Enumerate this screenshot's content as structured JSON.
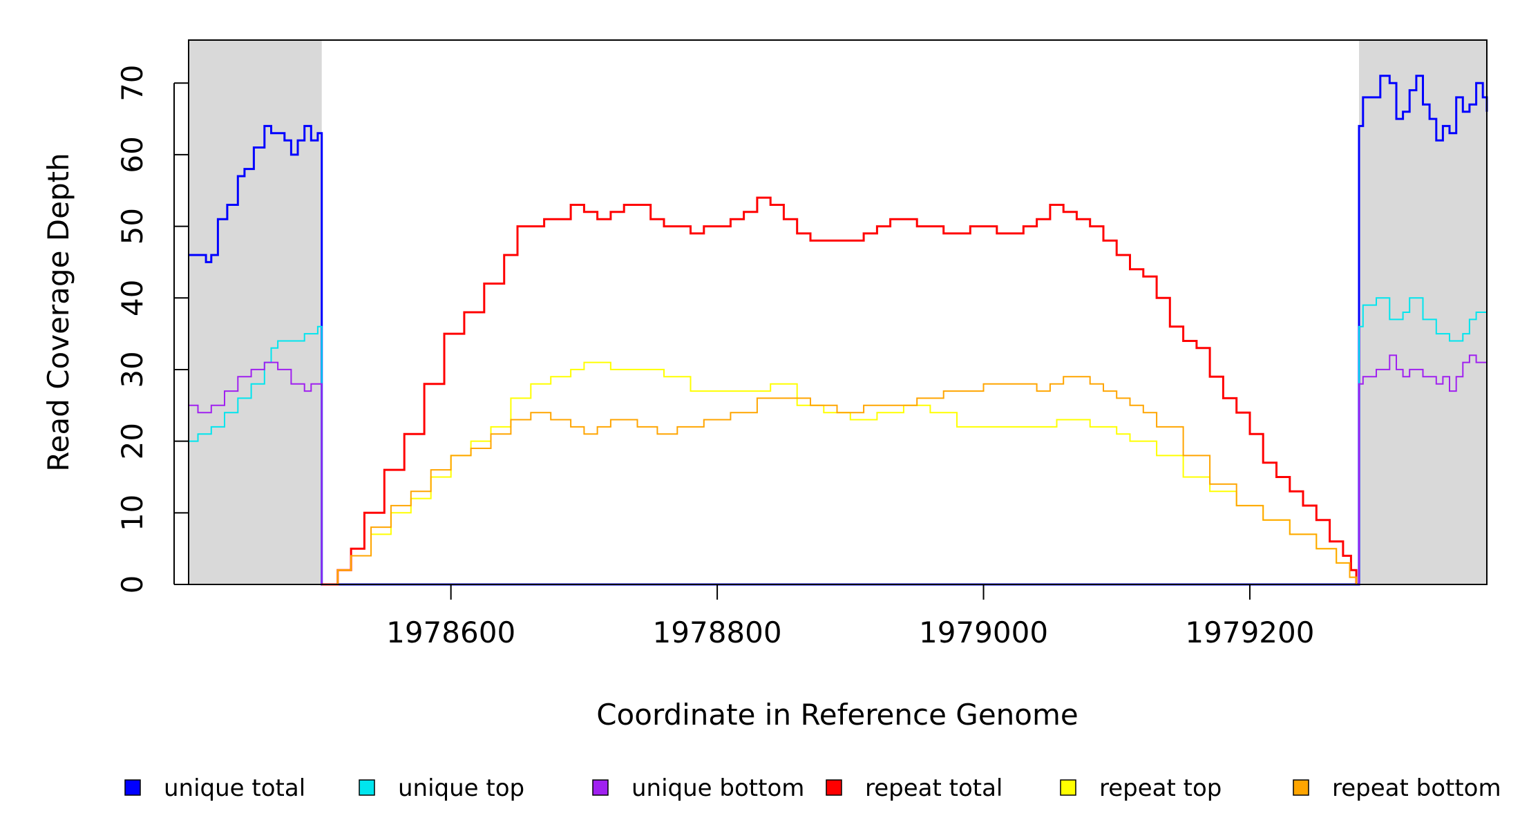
{
  "chart_data": {
    "type": "line",
    "title": "",
    "xlabel": "Coordinate in Reference Genome",
    "ylabel": "Read Coverage Depth",
    "xlim": [
      1978403,
      1979378
    ],
    "ylim": [
      0,
      76
    ],
    "x_ticks": [
      1978600,
      1978800,
      1979000,
      1979200
    ],
    "x_tick_labels": [
      "1978600",
      "1978800",
      "1979000",
      "1979200"
    ],
    "y_ticks": [
      0,
      10,
      20,
      30,
      40,
      50,
      60,
      70
    ],
    "y_tick_labels": [
      "0",
      "10",
      "20",
      "30",
      "40",
      "50",
      "60",
      "70"
    ],
    "grid": false,
    "legend_position": "bottom",
    "shaded_regions": [
      {
        "x0": 1978403,
        "x1": 1978503,
        "color": "#d9d9d9"
      },
      {
        "x0": 1979282,
        "x1": 1979378,
        "color": "#d9d9d9"
      }
    ],
    "series": [
      {
        "name": "unique total",
        "color": "#0000ff",
        "width": 3,
        "x": [
          1978403,
          1978410,
          1978416,
          1978420,
          1978425,
          1978432,
          1978440,
          1978445,
          1978452,
          1978460,
          1978465,
          1978470,
          1978475,
          1978480,
          1978485,
          1978490,
          1978495,
          1978500,
          1978503,
          1978503,
          1979280,
          1979282,
          1979282,
          1979285,
          1979292,
          1979298,
          1979305,
          1979310,
          1979315,
          1979320,
          1979325,
          1979330,
          1979335,
          1979340,
          1979345,
          1979350,
          1979355,
          1979360,
          1979365,
          1979370,
          1979375,
          1979378
        ],
        "y": [
          46,
          46,
          45,
          46,
          51,
          53,
          57,
          58,
          61,
          64,
          63,
          63,
          62,
          60,
          62,
          64,
          62,
          63,
          62,
          0,
          0,
          1,
          64,
          68,
          68,
          71,
          70,
          65,
          66,
          69,
          71,
          67,
          65,
          62,
          64,
          63,
          68,
          66,
          67,
          70,
          68,
          66
        ]
      },
      {
        "name": "unique top",
        "color": "#00e5ee",
        "width": 2,
        "x": [
          1978403,
          1978410,
          1978420,
          1978430,
          1978440,
          1978450,
          1978460,
          1978465,
          1978470,
          1978480,
          1978490,
          1978495,
          1978500,
          1978503,
          1978503,
          1979280,
          1979282,
          1979282,
          1979285,
          1979295,
          1979305,
          1979315,
          1979320,
          1979330,
          1979340,
          1979350,
          1979360,
          1979365,
          1979370,
          1979378
        ],
        "y": [
          20,
          21,
          22,
          24,
          26,
          28,
          31,
          33,
          34,
          34,
          35,
          35,
          36,
          35,
          0,
          0,
          1,
          36,
          39,
          40,
          37,
          38,
          40,
          37,
          35,
          34,
          35,
          37,
          38,
          37
        ]
      },
      {
        "name": "unique bottom",
        "color": "#a020f0",
        "width": 2,
        "x": [
          1978403,
          1978410,
          1978420,
          1978430,
          1978440,
          1978450,
          1978460,
          1978465,
          1978470,
          1978480,
          1978490,
          1978495,
          1978500,
          1978503,
          1978503,
          1979280,
          1979282,
          1979282,
          1979285,
          1979295,
          1979305,
          1979310,
          1979315,
          1979320,
          1979330,
          1979340,
          1979345,
          1979350,
          1979355,
          1979360,
          1979365,
          1979370,
          1979378
        ],
        "y": [
          25,
          24,
          25,
          27,
          29,
          30,
          31,
          31,
          30,
          28,
          27,
          28,
          28,
          27,
          0,
          0,
          1,
          28,
          29,
          30,
          32,
          30,
          29,
          30,
          29,
          28,
          29,
          27,
          29,
          31,
          32,
          31,
          30
        ]
      },
      {
        "name": "repeat total",
        "color": "#ff0000",
        "width": 3,
        "x": [
          1978503,
          1978515,
          1978525,
          1978535,
          1978550,
          1978565,
          1978580,
          1978595,
          1978610,
          1978625,
          1978640,
          1978650,
          1978660,
          1978670,
          1978680,
          1978690,
          1978700,
          1978710,
          1978720,
          1978730,
          1978740,
          1978750,
          1978760,
          1978770,
          1978780,
          1978790,
          1978800,
          1978810,
          1978820,
          1978830,
          1978840,
          1978850,
          1978860,
          1978870,
          1978880,
          1978890,
          1978900,
          1978910,
          1978920,
          1978930,
          1978940,
          1978950,
          1978960,
          1978970,
          1978980,
          1978990,
          1979000,
          1979010,
          1979020,
          1979030,
          1979040,
          1979050,
          1979060,
          1979070,
          1979080,
          1979090,
          1979100,
          1979110,
          1979120,
          1979130,
          1979140,
          1979150,
          1979160,
          1979170,
          1979180,
          1979190,
          1979200,
          1979210,
          1979220,
          1979230,
          1979240,
          1979250,
          1979260,
          1979270,
          1979276,
          1979280
        ],
        "y": [
          0,
          2,
          5,
          10,
          16,
          21,
          28,
          35,
          38,
          42,
          46,
          50,
          50,
          51,
          51,
          53,
          52,
          51,
          52,
          53,
          53,
          51,
          50,
          50,
          49,
          50,
          50,
          51,
          52,
          54,
          53,
          51,
          49,
          48,
          48,
          48,
          48,
          49,
          50,
          51,
          51,
          50,
          50,
          49,
          49,
          50,
          50,
          49,
          49,
          50,
          51,
          53,
          52,
          51,
          50,
          48,
          46,
          44,
          43,
          40,
          36,
          34,
          33,
          29,
          26,
          24,
          21,
          17,
          15,
          13,
          11,
          9,
          6,
          4,
          2,
          0
        ]
      },
      {
        "name": "repeat top",
        "color": "#ffff00",
        "width": 2,
        "x": [
          1978503,
          1978515,
          1978525,
          1978540,
          1978555,
          1978570,
          1978585,
          1978600,
          1978615,
          1978630,
          1978645,
          1978660,
          1978675,
          1978690,
          1978700,
          1978720,
          1978740,
          1978760,
          1978780,
          1978800,
          1978820,
          1978840,
          1978860,
          1978880,
          1978900,
          1978920,
          1978940,
          1978960,
          1978980,
          1979000,
          1979020,
          1979040,
          1979055,
          1979070,
          1979080,
          1979090,
          1979100,
          1979110,
          1979120,
          1979130,
          1979150,
          1979170,
          1979190,
          1979210,
          1979230,
          1979250,
          1979265,
          1979275,
          1979280
        ],
        "y": [
          0,
          2,
          4,
          7,
          10,
          12,
          15,
          18,
          20,
          22,
          26,
          28,
          29,
          30,
          31,
          30,
          30,
          29,
          27,
          27,
          27,
          28,
          25,
          24,
          23,
          24,
          25,
          24,
          22,
          22,
          22,
          22,
          23,
          23,
          22,
          22,
          21,
          20,
          20,
          18,
          15,
          13,
          11,
          9,
          7,
          5,
          3,
          1,
          0
        ]
      },
      {
        "name": "repeat bottom",
        "color": "#ffa500",
        "width": 2,
        "x": [
          1978503,
          1978515,
          1978525,
          1978540,
          1978555,
          1978570,
          1978585,
          1978600,
          1978615,
          1978630,
          1978645,
          1978660,
          1978675,
          1978690,
          1978700,
          1978710,
          1978720,
          1978730,
          1978740,
          1978755,
          1978770,
          1978790,
          1978810,
          1978830,
          1978850,
          1978870,
          1978890,
          1978910,
          1978930,
          1978950,
          1978970,
          1978990,
          1979000,
          1979020,
          1979040,
          1979050,
          1979060,
          1979070,
          1979080,
          1979090,
          1979100,
          1979110,
          1979120,
          1979130,
          1979150,
          1979170,
          1979190,
          1979210,
          1979230,
          1979250,
          1979265,
          1979275,
          1979280
        ],
        "y": [
          0,
          2,
          4,
          8,
          11,
          13,
          16,
          18,
          19,
          21,
          23,
          24,
          23,
          22,
          21,
          22,
          23,
          23,
          22,
          21,
          22,
          23,
          24,
          26,
          26,
          25,
          24,
          25,
          25,
          26,
          27,
          27,
          28,
          28,
          27,
          28,
          29,
          29,
          28,
          27,
          26,
          25,
          24,
          22,
          18,
          14,
          11,
          9,
          7,
          5,
          3,
          1,
          0
        ]
      }
    ]
  }
}
